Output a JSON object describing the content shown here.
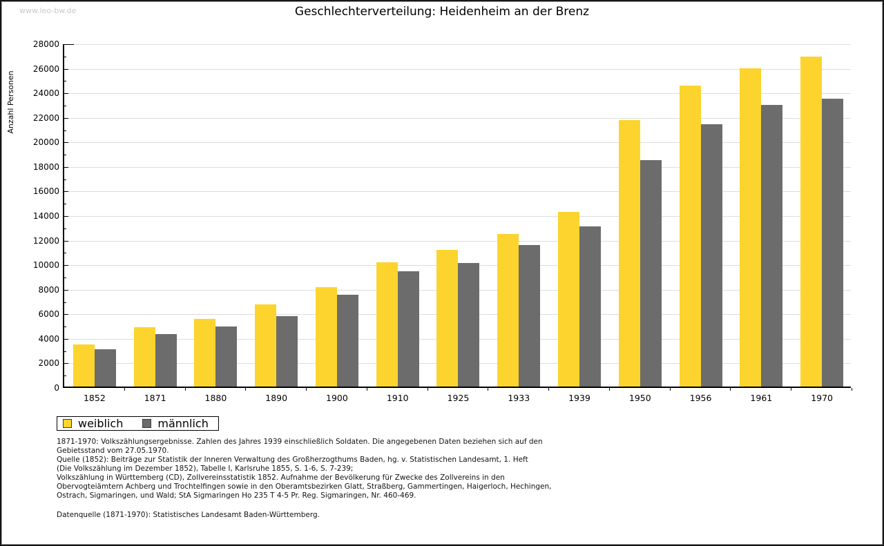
{
  "watermark": "www.leo-bw.de",
  "title": "Geschlechterverteilung: Heidenheim an der Brenz",
  "y_axis_label": "Anzahl Personen",
  "chart_data": {
    "type": "bar",
    "title": "Geschlechterverteilung: Heidenheim an der Brenz",
    "xlabel": "",
    "ylabel": "Anzahl Personen",
    "categories": [
      "1852",
      "1871",
      "1880",
      "1890",
      "1900",
      "1910",
      "1925",
      "1933",
      "1939",
      "1950",
      "1956",
      "1961",
      "1970"
    ],
    "series": [
      {
        "name": "weiblich",
        "color": "#FCD42D",
        "values": [
          3450,
          4850,
          5500,
          6700,
          8100,
          10100,
          11150,
          12450,
          14200,
          21700,
          24500,
          25900,
          26850
        ]
      },
      {
        "name": "männlich",
        "color": "#6C6C6C",
        "values": [
          3050,
          4300,
          4900,
          5750,
          7500,
          9400,
          10050,
          11500,
          13050,
          18450,
          21350,
          22950,
          23450
        ]
      }
    ],
    "ylim": [
      0,
      28000
    ],
    "ytick_step": 2000,
    "minor_tick_step": 1000,
    "grid": "horizontal major gridlines, light gray",
    "gridline_color": "#DCDCDC",
    "legend_position": "below plot, bottom-left"
  },
  "legend": {
    "items": [
      {
        "label": "weiblich",
        "color": "#FCD42D"
      },
      {
        "label": "männlich",
        "color": "#6C6C6C"
      }
    ]
  },
  "notes": {
    "lines": [
      "1871-1970: Volkszählungsergebnisse. Zahlen des Jahres 1939 einschließlich Soldaten. Die angegebenen Daten beziehen sich auf den",
      "Gebietsstand vom 27.05.1970.",
      "Quelle (1852): Beiträge zur Statistik der Inneren Verwaltung des Großherzogthums Baden, hg. v. Statistischen Landesamt, 1. Heft",
      "(Die Volkszählung im Dezember 1852), Tabelle I, Karlsruhe 1855, S. 1-6, S. 7-239;",
      "Volkszählung in Württemberg (CD), Zollvereinsstatistik 1852. Aufnahme der Bevölkerung für Zwecke des Zollvereins in den",
      "Obervogteiämtern Achberg und Trochtelfingen sowie in den Oberamtsbezirken Glatt, Straßberg, Gammertingen, Haigerloch, Hechingen,",
      "Ostrach, Sigmaringen, und Wald; StA Sigmaringen Ho 235 T 4-5 Pr. Reg. Sigmaringen, Nr. 460-469."
    ],
    "datasource": "Datenquelle (1871-1970): Statistisches Landesamt Baden-Württemberg."
  }
}
